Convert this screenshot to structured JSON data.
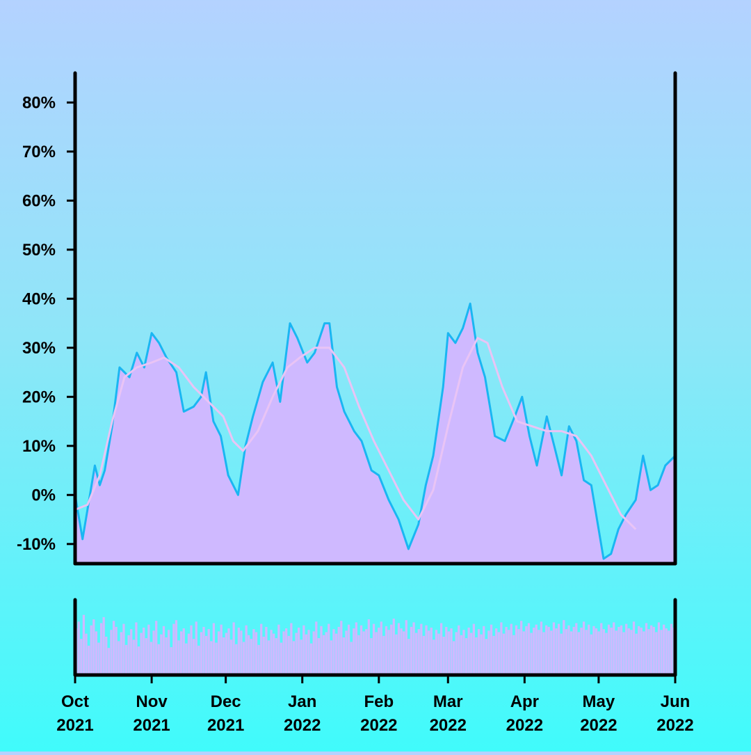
{
  "chart_data": {
    "type": "area",
    "title": "",
    "xlabel": "",
    "ylabel": "",
    "y_unit": "%",
    "ylim": [
      -14,
      86
    ],
    "y_ticks": [
      {
        "value": -10,
        "label": "-10%"
      },
      {
        "value": 0,
        "label": "0%"
      },
      {
        "value": 10,
        "label": "10%"
      },
      {
        "value": 20,
        "label": "20%"
      },
      {
        "value": 30,
        "label": "30%"
      },
      {
        "value": 40,
        "label": "40%"
      },
      {
        "value": 50,
        "label": "50%"
      },
      {
        "value": 60,
        "label": "60%"
      },
      {
        "value": 70,
        "label": "70%"
      },
      {
        "value": 80,
        "label": "80%"
      }
    ],
    "x_range": [
      "2021-10-01",
      "2022-06-01"
    ],
    "x_ticks": [
      {
        "date": "2021-10-01",
        "month": "Oct",
        "year": "2021"
      },
      {
        "date": "2021-11-01",
        "month": "Nov",
        "year": "2021"
      },
      {
        "date": "2021-12-01",
        "month": "Dec",
        "year": "2021"
      },
      {
        "date": "2022-01-01",
        "month": "Jan",
        "year": "2022"
      },
      {
        "date": "2022-02-01",
        "month": "Feb",
        "year": "2022"
      },
      {
        "date": "2022-03-01",
        "month": "Mar",
        "year": "2022"
      },
      {
        "date": "2022-04-01",
        "month": "Apr",
        "year": "2022"
      },
      {
        "date": "2022-05-01",
        "month": "May",
        "year": "2022"
      },
      {
        "date": "2022-06-01",
        "month": "Jun",
        "year": "2022"
      }
    ],
    "grid": false,
    "legend": "none",
    "colors": {
      "area_fill": "#cfb9ff",
      "main_line": "#1ab6f2",
      "moving_average": "#e9c4f5",
      "axes": "#000000",
      "volume_bars": "#cfb9ff"
    },
    "series": [
      {
        "role": "main",
        "points": [
          [
            "2021-10-01",
            0
          ],
          [
            "2021-10-04",
            -9
          ],
          [
            "2021-10-06",
            -3
          ],
          [
            "2021-10-09",
            6
          ],
          [
            "2021-10-11",
            2
          ],
          [
            "2021-10-13",
            5
          ],
          [
            "2021-10-16",
            14
          ],
          [
            "2021-10-19",
            26
          ],
          [
            "2021-10-23",
            24
          ],
          [
            "2021-10-26",
            29
          ],
          [
            "2021-10-29",
            26
          ],
          [
            "2021-11-01",
            33
          ],
          [
            "2021-11-04",
            31
          ],
          [
            "2021-11-07",
            28
          ],
          [
            "2021-11-11",
            25
          ],
          [
            "2021-11-14",
            17
          ],
          [
            "2021-11-18",
            18
          ],
          [
            "2021-11-21",
            20
          ],
          [
            "2021-11-23",
            25
          ],
          [
            "2021-11-26",
            15
          ],
          [
            "2021-11-29",
            12
          ],
          [
            "2021-12-02",
            4
          ],
          [
            "2021-12-06",
            0
          ],
          [
            "2021-12-09",
            10
          ],
          [
            "2021-12-12",
            16
          ],
          [
            "2021-12-16",
            23
          ],
          [
            "2021-12-20",
            27
          ],
          [
            "2021-12-23",
            19
          ],
          [
            "2021-12-27",
            35
          ],
          [
            "2021-12-30",
            32
          ],
          [
            "2022-01-03",
            27
          ],
          [
            "2022-01-06",
            29
          ],
          [
            "2022-01-10",
            35
          ],
          [
            "2022-01-12",
            35
          ],
          [
            "2022-01-15",
            22
          ],
          [
            "2022-01-18",
            17
          ],
          [
            "2022-01-22",
            13
          ],
          [
            "2022-01-25",
            11
          ],
          [
            "2022-01-29",
            5
          ],
          [
            "2022-02-01",
            4
          ],
          [
            "2022-02-05",
            -1
          ],
          [
            "2022-02-09",
            -5
          ],
          [
            "2022-02-13",
            -11
          ],
          [
            "2022-02-17",
            -6
          ],
          [
            "2022-02-20",
            2
          ],
          [
            "2022-02-23",
            8
          ],
          [
            "2022-02-27",
            22
          ],
          [
            "2022-03-01",
            33
          ],
          [
            "2022-03-04",
            31
          ],
          [
            "2022-03-07",
            34
          ],
          [
            "2022-03-10",
            39
          ],
          [
            "2022-03-13",
            29
          ],
          [
            "2022-03-16",
            24
          ],
          [
            "2022-03-20",
            12
          ],
          [
            "2022-03-24",
            11
          ],
          [
            "2022-03-28",
            16
          ],
          [
            "2022-03-31",
            20
          ],
          [
            "2022-04-03",
            12
          ],
          [
            "2022-04-06",
            6
          ],
          [
            "2022-04-10",
            16
          ],
          [
            "2022-04-13",
            10
          ],
          [
            "2022-04-16",
            4
          ],
          [
            "2022-04-19",
            14
          ],
          [
            "2022-04-22",
            11
          ],
          [
            "2022-04-25",
            3
          ],
          [
            "2022-04-28",
            2
          ],
          [
            "2022-05-01",
            -7
          ],
          [
            "2022-05-03",
            -13
          ],
          [
            "2022-05-06",
            -12
          ],
          [
            "2022-05-09",
            -7
          ],
          [
            "2022-05-12",
            -4
          ],
          [
            "2022-05-16",
            -1
          ],
          [
            "2022-05-19",
            8
          ],
          [
            "2022-05-22",
            1
          ],
          [
            "2022-05-25",
            2
          ],
          [
            "2022-05-28",
            6
          ],
          [
            "2022-06-01",
            8
          ]
        ]
      },
      {
        "role": "moving_average",
        "points": [
          [
            "2021-10-01",
            -3
          ],
          [
            "2021-10-06",
            -2
          ],
          [
            "2021-10-11",
            4
          ],
          [
            "2021-10-16",
            15
          ],
          [
            "2021-10-21",
            24
          ],
          [
            "2021-10-26",
            26
          ],
          [
            "2021-11-01",
            27
          ],
          [
            "2021-11-06",
            28
          ],
          [
            "2021-11-12",
            26
          ],
          [
            "2021-11-18",
            22
          ],
          [
            "2021-11-24",
            19
          ],
          [
            "2021-11-30",
            16
          ],
          [
            "2021-12-04",
            11
          ],
          [
            "2021-12-08",
            9
          ],
          [
            "2021-12-14",
            13
          ],
          [
            "2021-12-20",
            20
          ],
          [
            "2021-12-26",
            26
          ],
          [
            "2021-12-31",
            28
          ],
          [
            "2022-01-06",
            30
          ],
          [
            "2022-01-12",
            30
          ],
          [
            "2022-01-18",
            26
          ],
          [
            "2022-01-24",
            18
          ],
          [
            "2022-01-30",
            11
          ],
          [
            "2022-02-05",
            5
          ],
          [
            "2022-02-11",
            -1
          ],
          [
            "2022-02-17",
            -5
          ],
          [
            "2022-02-23",
            1
          ],
          [
            "2022-03-01",
            14
          ],
          [
            "2022-03-07",
            26
          ],
          [
            "2022-03-13",
            32
          ],
          [
            "2022-03-17",
            31
          ],
          [
            "2022-03-23",
            22
          ],
          [
            "2022-03-29",
            15
          ],
          [
            "2022-04-04",
            14
          ],
          [
            "2022-04-10",
            13
          ],
          [
            "2022-04-16",
            13
          ],
          [
            "2022-04-22",
            12
          ],
          [
            "2022-04-28",
            8
          ],
          [
            "2022-05-04",
            2
          ],
          [
            "2022-05-10",
            -4
          ],
          [
            "2022-05-16",
            -7
          ]
        ]
      }
    ],
    "volume": {
      "ylim": [
        0,
        100
      ],
      "values": [
        62,
        71,
        48,
        80,
        55,
        39,
        66,
        74,
        58,
        43,
        69,
        77,
        51,
        36,
        60,
        72,
        64,
        45,
        57,
        68,
        40,
        53,
        61,
        47,
        70,
        38,
        56,
        63,
        49,
        67,
        44,
        59,
        72,
        41,
        54,
        65,
        50,
        60,
        37,
        68,
        73,
        46,
        58,
        62,
        42,
        55,
        66,
        48,
        71,
        39,
        57,
        64,
        52,
        61,
        45,
        69,
        43,
        58,
        67,
        50,
        56,
        62,
        47,
        70,
        41,
        63,
        59,
        44,
        66,
        53,
        48,
        61,
        57,
        40,
        68,
        51,
        64,
        46,
        60,
        55,
        49,
        67,
        43,
        58,
        62,
        52,
        69,
        45,
        56,
        63,
        47,
        66,
        54,
        60,
        42,
        58,
        71,
        49,
        65,
        53,
        57,
        68,
        46,
        61,
        55,
        64,
        72,
        50,
        59,
        67,
        44,
        62,
        70,
        53,
        66,
        58,
        61,
        74,
        49,
        68,
        57,
        63,
        71,
        52,
        65,
        60,
        67,
        75,
        54,
        69,
        62,
        58,
        73,
        48,
        64,
        70,
        56,
        61,
        68,
        52,
        66,
        59,
        63,
        47,
        60,
        55,
        69,
        51,
        64,
        58,
        62,
        45,
        57,
        66,
        53,
        60,
        49,
        63,
        56,
        68,
        50,
        61,
        54,
        65,
        48,
        59,
        67,
        52,
        62,
        57,
        70,
        55,
        64,
        60,
        68,
        53,
        66,
        61,
        72,
        58,
        65,
        69,
        56,
        63,
        67,
        60,
        71,
        57,
        66,
        64,
        59,
        70,
        62,
        68,
        55,
        73,
        61,
        66,
        58,
        64,
        69,
        57,
        63,
        71,
        60,
        67,
        54,
        65,
        62,
        58,
        69,
        61,
        56,
        67,
        63,
        70,
        59,
        64,
        66,
        57,
        68,
        62,
        60,
        71,
        55,
        65,
        63,
        58,
        69,
        61,
        66,
        64,
        57,
        70,
        60,
        67,
        62,
        59,
        68,
        63
      ]
    }
  }
}
